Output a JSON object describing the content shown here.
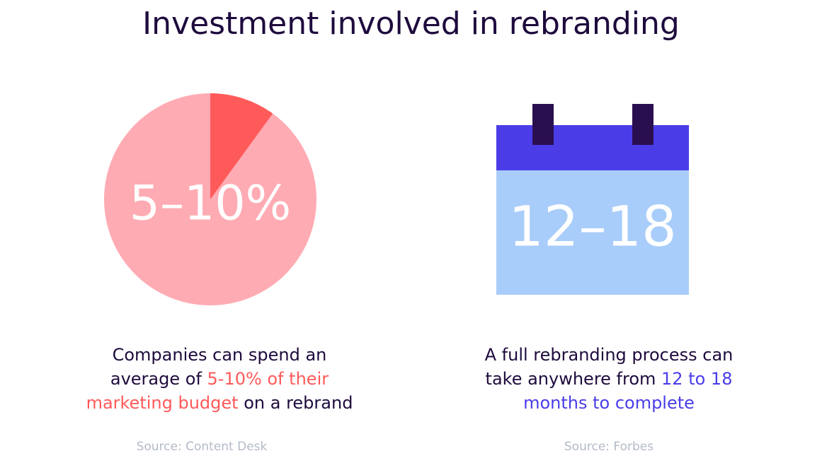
{
  "title": "Investment involved in rebranding",
  "panels": [
    {
      "figure": "5–10%",
      "lines": [
        [
          {
            "text": "Companies can spend an"
          }
        ],
        [
          {
            "text": "average of "
          },
          {
            "text": "5-10% of their",
            "highlight": true
          }
        ],
        [
          {
            "text": "marketing budget",
            "highlight": true
          },
          {
            "text": " on a rebrand"
          }
        ]
      ],
      "highlight_color": "#ff5a5a",
      "source": "Source: Content Desk"
    },
    {
      "figure": "12–18",
      "lines": [
        [
          {
            "text": "A full rebranding process can"
          }
        ],
        [
          {
            "text": "take anywhere from "
          },
          {
            "text": "12 to 18",
            "highlight": true
          }
        ],
        [
          {
            "text": "months to complete",
            "highlight": true
          }
        ]
      ],
      "highlight_color": "#4a3de8",
      "source": "Source: Forbes"
    }
  ]
}
